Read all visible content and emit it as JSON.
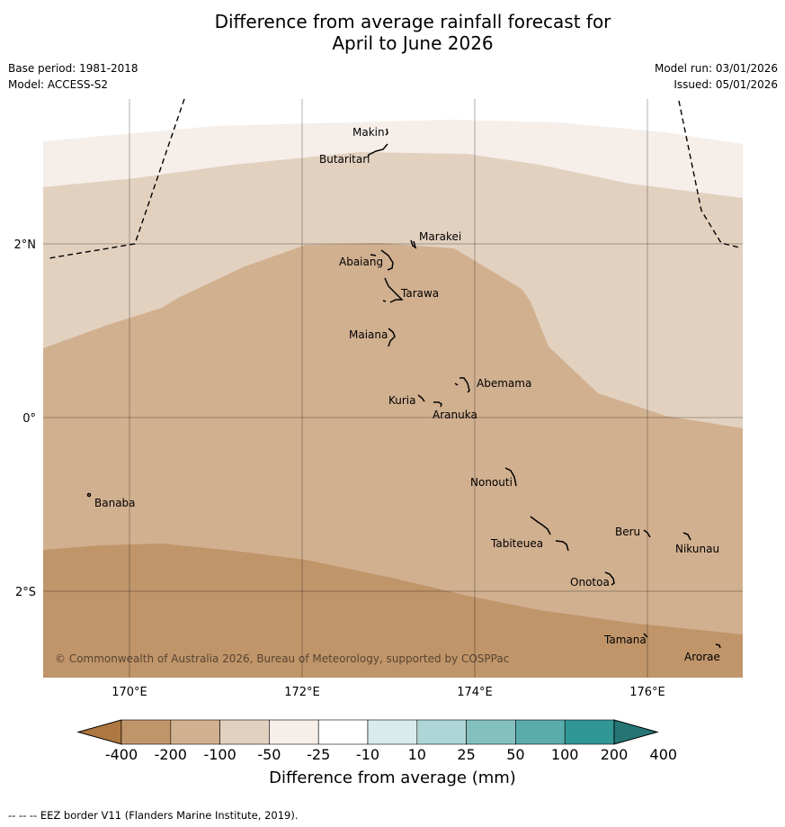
{
  "title_line1": "Difference from average rainfall forecast for",
  "title_line2": "April to June 2026",
  "base_period": "Base period: 1981-2018",
  "model": "Model: ACCESS-S2",
  "model_run": "Model run: 03/01/2026",
  "issued": "Issued: 05/01/2026",
  "copyright": "© Commonwealth of Australia 2026, Bureau of Meteorology, supported by COSPPac",
  "lat_labels": [
    "2°N",
    "0°",
    "2°S"
  ],
  "lon_labels": [
    "170°E",
    "172°E",
    "174°E",
    "176°E"
  ],
  "places": [
    "Makin",
    "Butaritari",
    "Marakei",
    "Abaiang",
    "Tarawa",
    "Maiana",
    "Abemama",
    "Kuria",
    "Aranuka",
    "Nonouti",
    "Banaba",
    "Tabiteuea",
    "Beru",
    "Nikunau",
    "Onotoa",
    "Tamana",
    "Arorae"
  ],
  "colorbar": {
    "ticks": [
      "-400",
      "-200",
      "-100",
      "-50",
      "-25",
      "-10",
      "10",
      "25",
      "50",
      "100",
      "200",
      "400"
    ],
    "colors": [
      "#ae7640",
      "#c0956a",
      "#d1b090",
      "#e3d1c0",
      "#f5eee9",
      "#ffffff",
      "#d9ecec",
      "#aed6d6",
      "#84c0bf",
      "#5aacac",
      "#309796",
      "#247574"
    ],
    "title": "Difference from average (mm)"
  },
  "footnote": "--  --  -- EEZ border V11 (Flanders Marine Institute, 2019)."
}
